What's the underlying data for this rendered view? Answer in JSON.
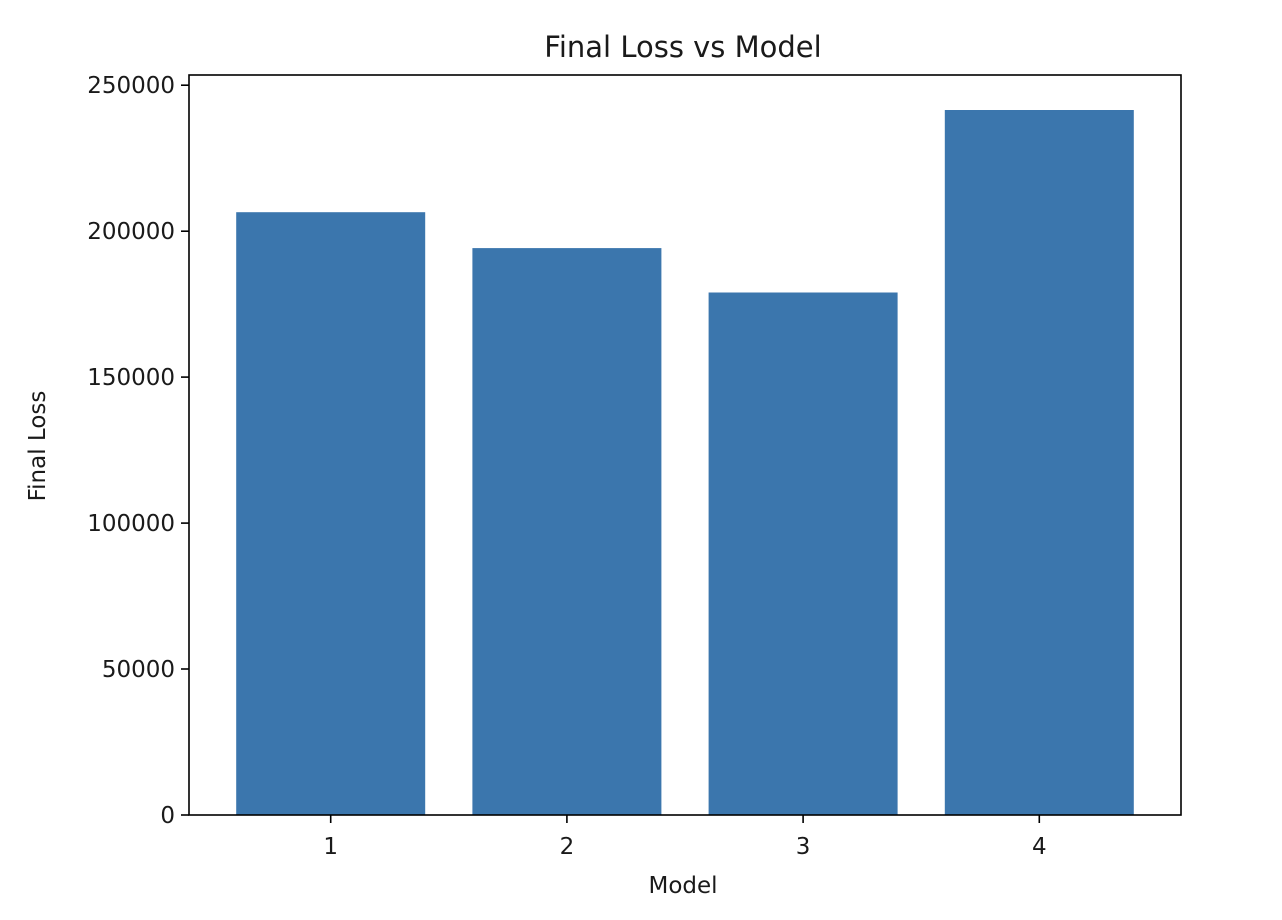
{
  "chart_data": {
    "type": "bar",
    "title": "Final Loss vs Model",
    "xlabel": "Model",
    "ylabel": "Final Loss",
    "categories": [
      "1",
      "2",
      "3",
      "4"
    ],
    "values": [
      206500,
      194200,
      179000,
      241500
    ],
    "ylim": [
      0,
      253500
    ],
    "yticks": [
      0,
      50000,
      100000,
      150000,
      200000,
      250000
    ],
    "grid": false,
    "bar_color": "#3b76ad"
  }
}
